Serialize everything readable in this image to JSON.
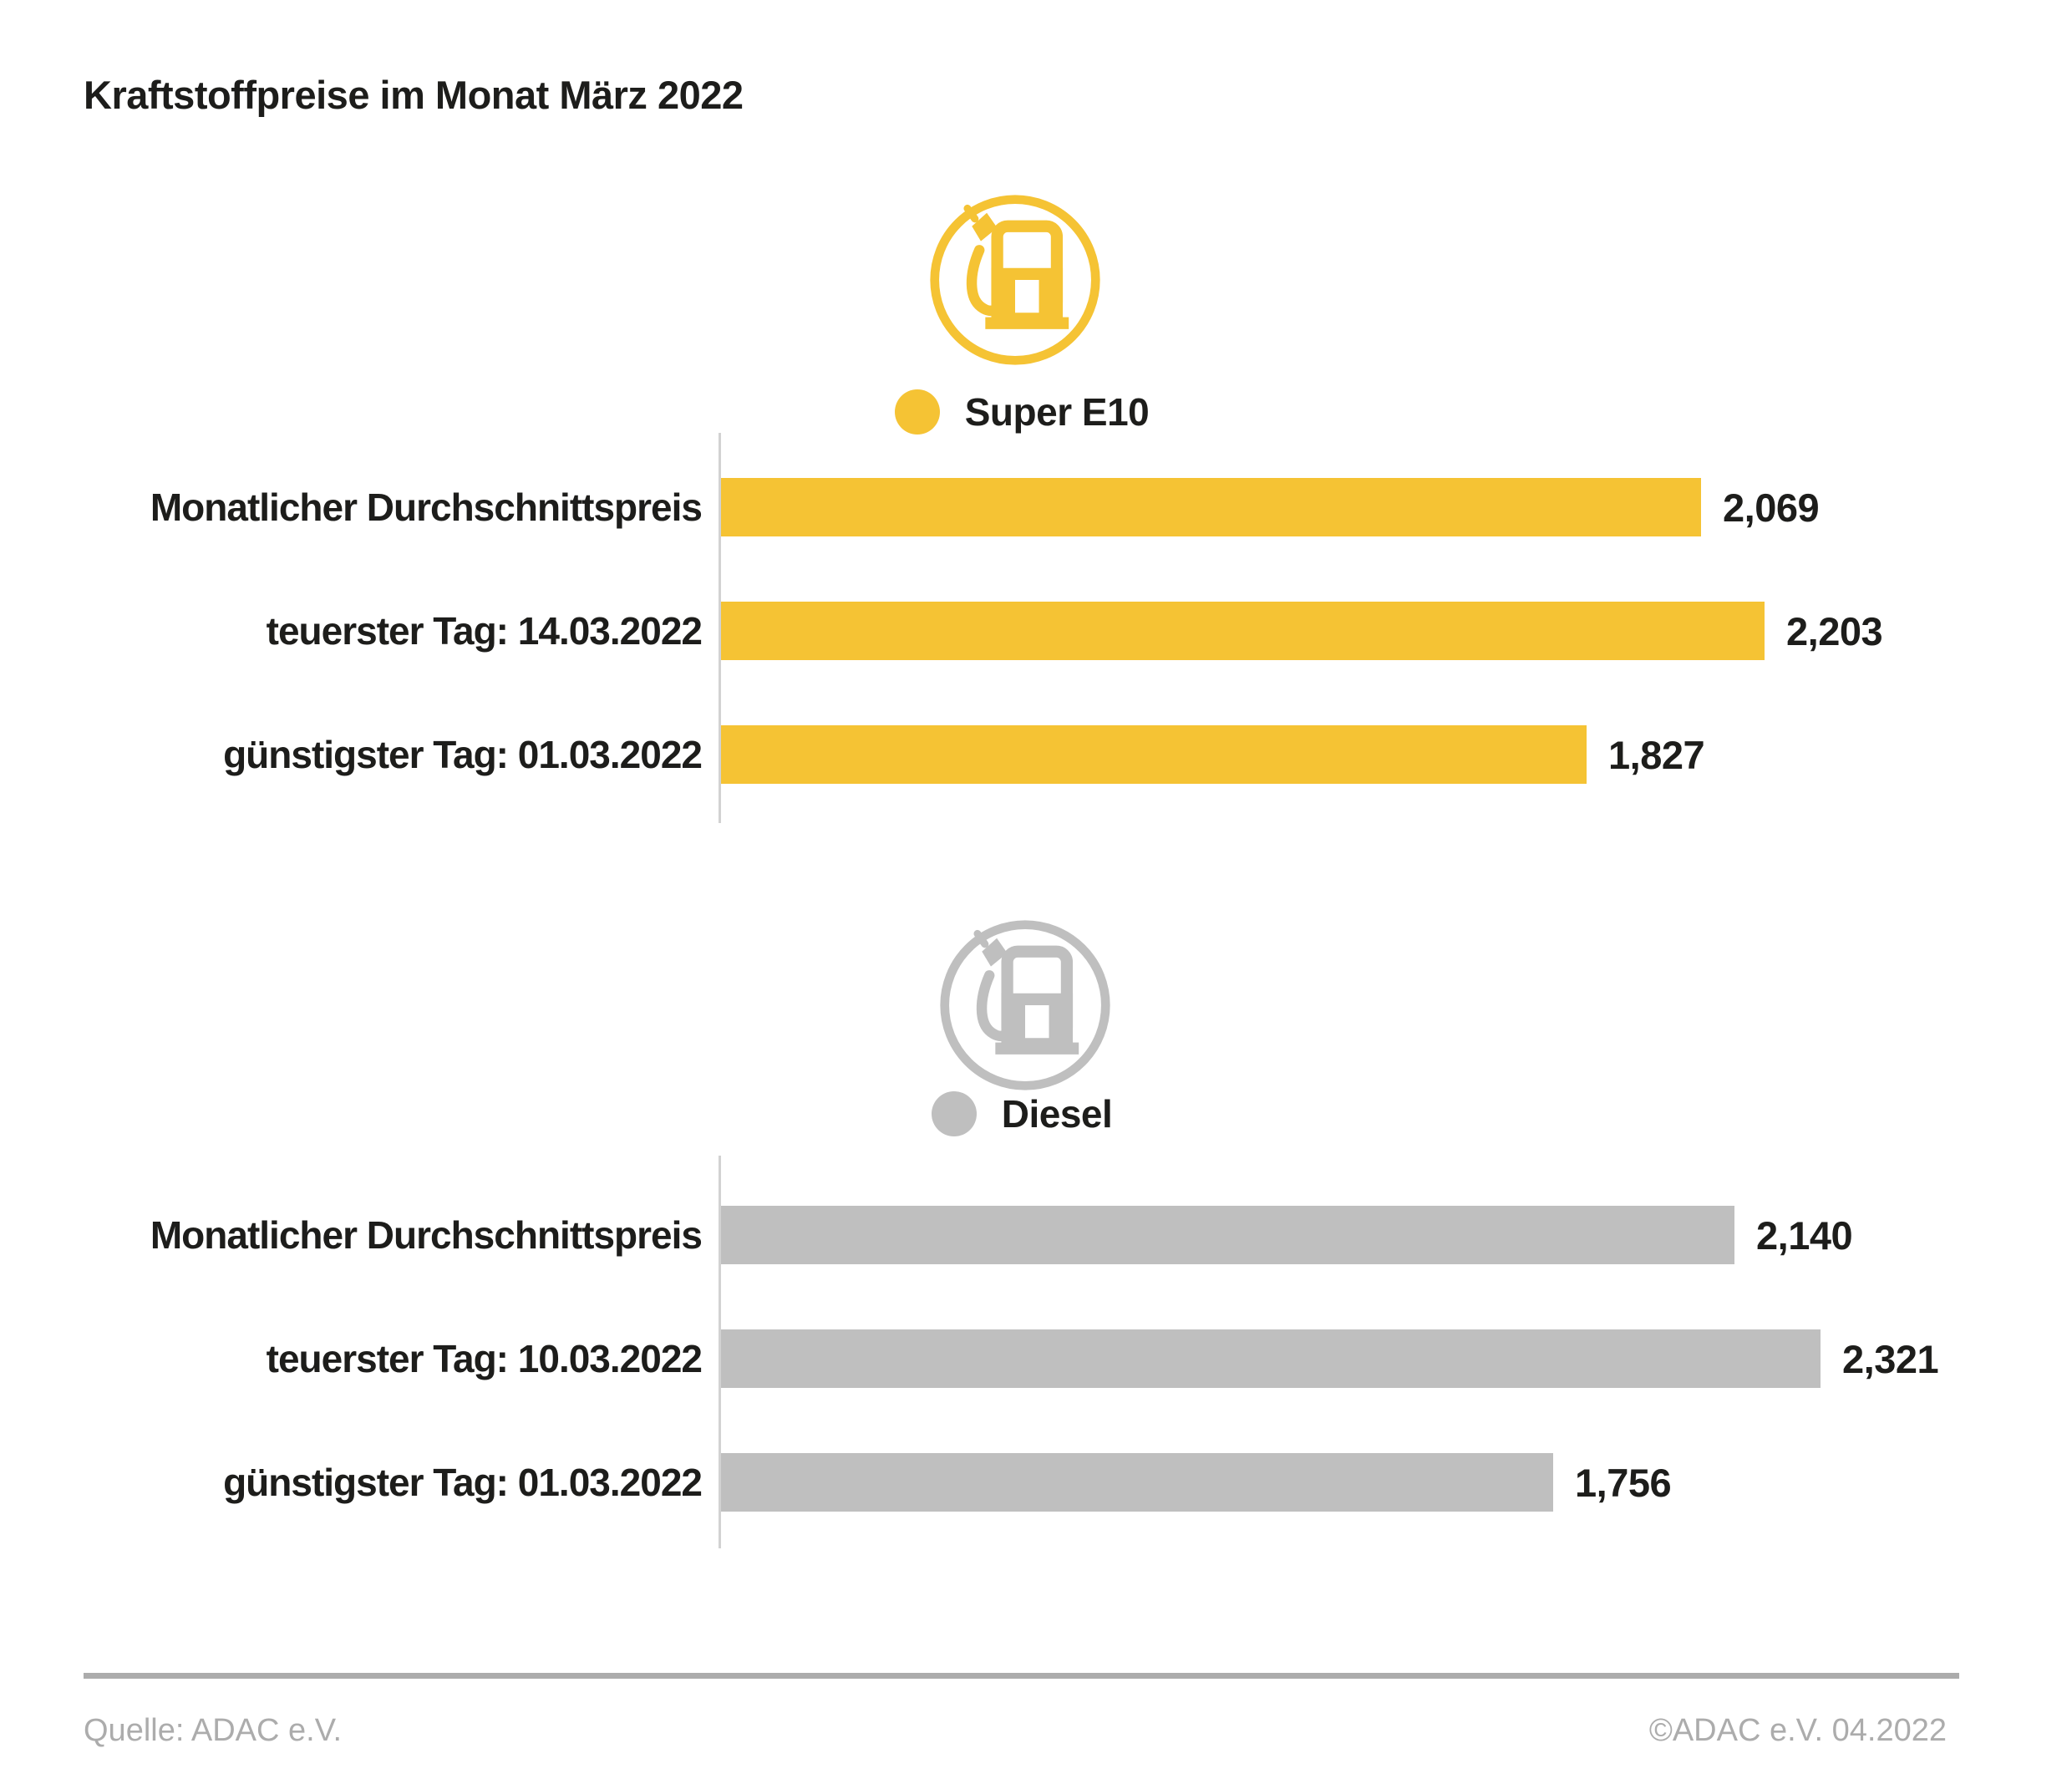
{
  "title": "Kraftstoffpreise im Monat März 2022",
  "colors": {
    "super_e10": "#F5C334",
    "diesel": "#BFBFBF",
    "text": "#1D1D1B",
    "axis_line": "#D2D2D2",
    "footer": "#ACACAC",
    "background": "#FFFFFF"
  },
  "chart_data": [
    {
      "type": "bar",
      "orientation": "horizontal",
      "series_name": "Super E10",
      "icon": "fuel-pump-icon",
      "color": "#F5C334",
      "categories": [
        "Monatlicher Durchschnittspreis",
        "teuerster Tag: 14.03.2022",
        "günstigster Tag: 01.03.2022"
      ],
      "values": [
        2.069,
        2.203,
        1.827
      ],
      "value_labels": [
        "2,069",
        "2,203",
        "1,827"
      ],
      "xlim": [
        0,
        2.5
      ],
      "grid": false,
      "legend_position": "top-center"
    },
    {
      "type": "bar",
      "orientation": "horizontal",
      "series_name": "Diesel",
      "icon": "fuel-pump-icon",
      "color": "#BFBFBF",
      "categories": [
        "Monatlicher Durchschnittspreis",
        "teuerster Tag: 10.03.2022",
        "günstigster Tag: 01.03.2022"
      ],
      "values": [
        2.14,
        2.321,
        1.756
      ],
      "value_labels": [
        "2,140",
        "2,321",
        "1,756"
      ],
      "xlim": [
        0,
        2.5
      ],
      "grid": false,
      "legend_position": "top-center"
    }
  ],
  "footer": {
    "source": "Quelle: ADAC e.V.",
    "copyright": "©ADAC e.V. 04.2022"
  }
}
